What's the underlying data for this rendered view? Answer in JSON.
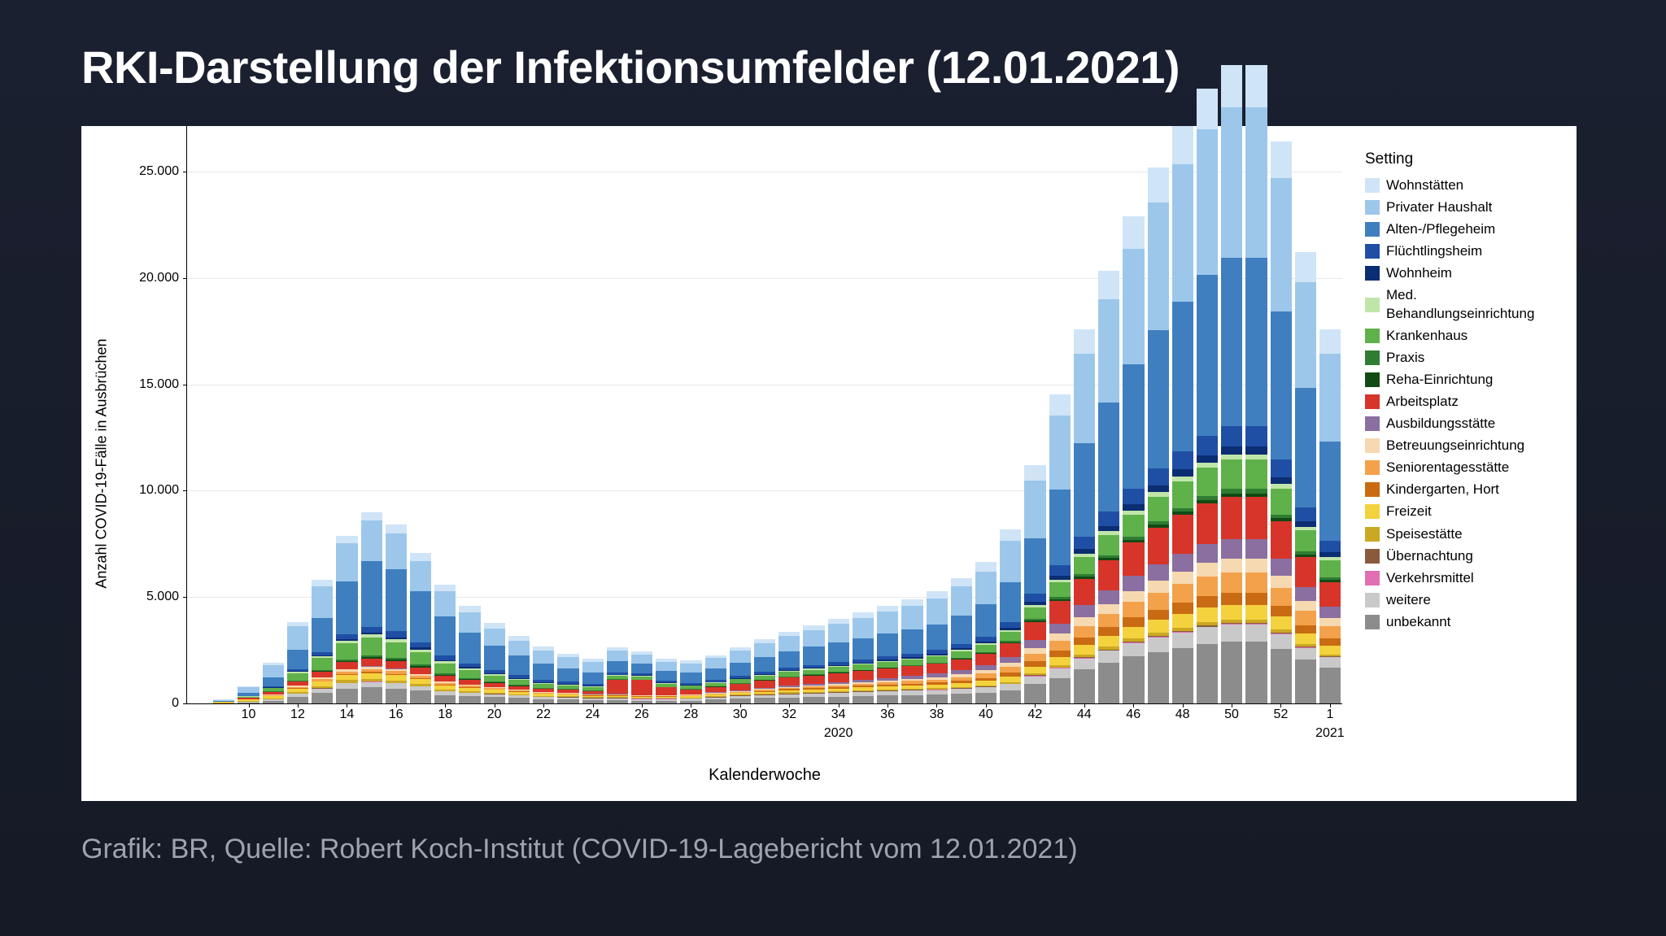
{
  "title": "RKI-Darstellung der Infektionsumfelder (12.01.2021)",
  "caption": "Grafik: BR, Quelle: Robert Koch-Institut (COVID-19-Lagebericht vom 12.01.2021)",
  "chart": {
    "type": "stacked-bar",
    "background_color": "#ffffff",
    "grid_color": "#e8e8e8",
    "ylabel": "Anzahl COVID-19-Fälle in Ausbrüchen",
    "xlabel": "Kalenderwoche",
    "legend_title": "Setting",
    "ylim": [
      0,
      26000
    ],
    "y_ticks": [
      0,
      5000,
      10000,
      15000,
      20000,
      25000
    ],
    "y_tick_labels": [
      "0",
      "5.000",
      "10.000",
      "15.000",
      "20.000",
      "25.000"
    ],
    "label_fontsize": 18,
    "tick_fontsize": 16,
    "x_tick_labels": [
      "10",
      "12",
      "14",
      "16",
      "18",
      "20",
      "22",
      "24",
      "26",
      "28",
      "30",
      "32",
      "34",
      "36",
      "38",
      "40",
      "42",
      "44",
      "46",
      "48",
      "50",
      "52",
      "1"
    ],
    "x_year_labels": [
      {
        "label": "2020",
        "index_center": 26
      },
      {
        "label": "2021",
        "index_center": 46
      }
    ],
    "categories": [
      {
        "key": "wohnstaetten",
        "label": "Wohnstätten",
        "color": "#cfe4f7"
      },
      {
        "key": "privater_haushalt",
        "label": "Privater Haushalt",
        "color": "#9cc7eb"
      },
      {
        "key": "alten_pflegeheim",
        "label": "Alten-/Pflegeheim",
        "color": "#3f7fbf"
      },
      {
        "key": "fluechtlingsheim",
        "label": "Flüchtlingsheim",
        "color": "#1f4fa5"
      },
      {
        "key": "wohnheim",
        "label": "Wohnheim",
        "color": "#0b2d72"
      },
      {
        "key": "med_behandlung",
        "label": "Med. Behandlungseinrichtung",
        "color": "#bfe6a8"
      },
      {
        "key": "krankenhaus",
        "label": "Krankenhaus",
        "color": "#5fb14a"
      },
      {
        "key": "praxis",
        "label": "Praxis",
        "color": "#2e7d32"
      },
      {
        "key": "reha",
        "label": "Reha-Einrichtung",
        "color": "#124a15"
      },
      {
        "key": "arbeitsplatz",
        "label": "Arbeitsplatz",
        "color": "#d8352a"
      },
      {
        "key": "ausbildung",
        "label": "Ausbildungsstätte",
        "color": "#8a6fa0"
      },
      {
        "key": "betreuung",
        "label": "Betreuungseinrichtung",
        "color": "#f6d9b0"
      },
      {
        "key": "seniorentag",
        "label": "Seniorentagesstätte",
        "color": "#f3a24b"
      },
      {
        "key": "kindergarten",
        "label": "Kindergarten, Hort",
        "color": "#c96b12"
      },
      {
        "key": "freizeit",
        "label": "Freizeit",
        "color": "#f4d23e"
      },
      {
        "key": "speise",
        "label": "Speisestätte",
        "color": "#caa823"
      },
      {
        "key": "uebernachtung",
        "label": "Übernachtung",
        "color": "#8b5a3c"
      },
      {
        "key": "verkehr",
        "label": "Verkehrsmittel",
        "color": "#e06fb4"
      },
      {
        "key": "weitere",
        "label": "weitere",
        "color": "#c9c9c9"
      },
      {
        "key": "unbekannt",
        "label": "unbekannt",
        "color": "#8c8c8c"
      }
    ],
    "weeks": [
      "8",
      "9",
      "10",
      "11",
      "12",
      "13",
      "14",
      "15",
      "16",
      "17",
      "18",
      "19",
      "20",
      "21",
      "22",
      "23",
      "24",
      "25",
      "26",
      "27",
      "28",
      "29",
      "30",
      "31",
      "32",
      "33",
      "34",
      "35",
      "36",
      "37",
      "38",
      "39",
      "40",
      "41",
      "42",
      "43",
      "44",
      "45",
      "46",
      "47",
      "48",
      "49",
      "50",
      "51",
      "52",
      "53",
      "1"
    ],
    "series_order_bottom_to_top": [
      "unbekannt",
      "weitere",
      "verkehr",
      "uebernachtung",
      "speise",
      "freizeit",
      "kindergarten",
      "seniorentag",
      "betreuung",
      "ausbildung",
      "arbeitsplatz",
      "reha",
      "praxis",
      "krankenhaus",
      "med_behandlung",
      "wohnheim",
      "fluechtlingsheim",
      "alten_pflegeheim",
      "privater_haushalt",
      "wohnstaetten"
    ],
    "data": {
      "unbekannt": [
        0,
        0,
        50,
        100,
        300,
        500,
        700,
        750,
        700,
        600,
        400,
        350,
        300,
        250,
        200,
        180,
        150,
        150,
        130,
        130,
        130,
        180,
        220,
        250,
        280,
        300,
        320,
        350,
        380,
        400,
        420,
        450,
        500,
        600,
        900,
        1200,
        1600,
        1900,
        2200,
        2400,
        2600,
        2800,
        2900,
        2900,
        2550,
        2050,
        1700
      ],
      "weitere": [
        0,
        0,
        30,
        80,
        150,
        200,
        250,
        260,
        240,
        200,
        170,
        150,
        130,
        120,
        110,
        100,
        90,
        90,
        80,
        80,
        90,
        100,
        110,
        130,
        150,
        160,
        170,
        180,
        190,
        200,
        210,
        230,
        260,
        300,
        380,
        450,
        520,
        580,
        640,
        700,
        740,
        780,
        800,
        800,
        700,
        560,
        470
      ],
      "verkehr": [
        0,
        0,
        0,
        0,
        5,
        5,
        5,
        5,
        5,
        5,
        5,
        5,
        5,
        5,
        5,
        5,
        5,
        5,
        5,
        5,
        5,
        5,
        5,
        5,
        5,
        5,
        5,
        5,
        5,
        5,
        5,
        5,
        10,
        10,
        15,
        15,
        20,
        20,
        25,
        25,
        30,
        30,
        30,
        30,
        25,
        20,
        15
      ],
      "uebernachtung": [
        0,
        0,
        0,
        5,
        10,
        15,
        20,
        20,
        20,
        15,
        10,
        10,
        10,
        10,
        10,
        10,
        10,
        10,
        10,
        15,
        20,
        25,
        30,
        35,
        40,
        40,
        40,
        40,
        35,
        30,
        25,
        25,
        25,
        25,
        30,
        30,
        35,
        35,
        40,
        40,
        45,
        45,
        45,
        45,
        40,
        30,
        25
      ],
      "speise": [
        0,
        30,
        40,
        60,
        80,
        100,
        120,
        130,
        120,
        100,
        80,
        70,
        60,
        50,
        40,
        40,
        35,
        35,
        30,
        30,
        30,
        35,
        40,
        45,
        50,
        50,
        50,
        50,
        50,
        50,
        50,
        55,
        60,
        70,
        85,
        100,
        115,
        130,
        140,
        150,
        160,
        170,
        170,
        170,
        150,
        120,
        100
      ],
      "freizeit": [
        0,
        30,
        60,
        100,
        150,
        200,
        250,
        270,
        260,
        230,
        180,
        150,
        130,
        110,
        90,
        80,
        70,
        70,
        60,
        60,
        60,
        70,
        80,
        90,
        100,
        110,
        120,
        130,
        140,
        150,
        160,
        180,
        200,
        250,
        320,
        390,
        450,
        510,
        560,
        610,
        650,
        680,
        700,
        700,
        620,
        500,
        420
      ],
      "kindergarten": [
        0,
        0,
        5,
        10,
        20,
        30,
        40,
        45,
        40,
        30,
        25,
        20,
        15,
        15,
        15,
        15,
        15,
        15,
        15,
        15,
        20,
        25,
        30,
        40,
        50,
        60,
        70,
        80,
        90,
        100,
        110,
        130,
        150,
        190,
        250,
        310,
        360,
        410,
        450,
        490,
        520,
        550,
        560,
        560,
        500,
        400,
        330
      ],
      "seniorentag": [
        0,
        0,
        10,
        30,
        60,
        90,
        120,
        140,
        130,
        110,
        90,
        70,
        60,
        50,
        40,
        40,
        35,
        35,
        30,
        30,
        30,
        35,
        40,
        50,
        60,
        70,
        80,
        90,
        100,
        120,
        140,
        170,
        200,
        260,
        350,
        450,
        550,
        640,
        720,
        800,
        860,
        920,
        960,
        960,
        850,
        680,
        560
      ],
      "betreuung": [
        0,
        0,
        10,
        30,
        50,
        70,
        90,
        100,
        90,
        80,
        70,
        60,
        50,
        40,
        35,
        30,
        30,
        30,
        25,
        25,
        25,
        30,
        35,
        40,
        50,
        60,
        70,
        80,
        90,
        100,
        120,
        140,
        160,
        200,
        270,
        340,
        400,
        460,
        510,
        560,
        600,
        640,
        660,
        660,
        580,
        470,
        390
      ],
      "ausbildung": [
        0,
        0,
        0,
        5,
        10,
        15,
        20,
        25,
        30,
        25,
        20,
        15,
        10,
        10,
        10,
        10,
        10,
        10,
        10,
        10,
        15,
        20,
        30,
        40,
        50,
        60,
        80,
        100,
        120,
        140,
        160,
        190,
        220,
        280,
        380,
        480,
        570,
        650,
        720,
        780,
        830,
        870,
        900,
        900,
        800,
        640,
        530
      ],
      "arbeitsplatz": [
        0,
        20,
        60,
        120,
        200,
        280,
        350,
        380,
        360,
        310,
        260,
        220,
        190,
        160,
        140,
        130,
        120,
        650,
        700,
        350,
        230,
        250,
        300,
        350,
        380,
        400,
        420,
        430,
        440,
        450,
        460,
        500,
        550,
        650,
        850,
        1050,
        1230,
        1400,
        1550,
        1700,
        1820,
        1920,
        1980,
        1980,
        1740,
        1400,
        1160
      ],
      "reha": [
        0,
        0,
        5,
        10,
        20,
        30,
        45,
        55,
        60,
        50,
        40,
        30,
        25,
        20,
        15,
        15,
        15,
        15,
        15,
        15,
        15,
        15,
        20,
        20,
        25,
        25,
        25,
        25,
        30,
        30,
        30,
        35,
        40,
        50,
        65,
        85,
        100,
        115,
        130,
        145,
        160,
        170,
        180,
        180,
        160,
        130,
        110
      ],
      "praxis": [
        0,
        0,
        5,
        15,
        30,
        45,
        60,
        75,
        80,
        70,
        55,
        45,
        35,
        30,
        25,
        25,
        20,
        20,
        20,
        20,
        20,
        20,
        25,
        25,
        30,
        30,
        30,
        30,
        30,
        30,
        35,
        40,
        45,
        55,
        75,
        95,
        115,
        130,
        145,
        160,
        175,
        185,
        195,
        195,
        170,
        140,
        115
      ],
      "krankenhaus": [
        0,
        10,
        50,
        150,
        350,
        550,
        750,
        850,
        750,
        600,
        480,
        380,
        300,
        240,
        200,
        180,
        160,
        160,
        140,
        140,
        140,
        150,
        170,
        190,
        210,
        220,
        230,
        240,
        250,
        260,
        280,
        310,
        350,
        420,
        560,
        700,
        830,
        950,
        1060,
        1170,
        1260,
        1340,
        1400,
        1400,
        1230,
        990,
        820
      ],
      "med_behandlung": [
        0,
        0,
        10,
        30,
        60,
        90,
        120,
        140,
        140,
        120,
        95,
        80,
        65,
        55,
        45,
        40,
        35,
        35,
        30,
        30,
        30,
        30,
        35,
        40,
        45,
        45,
        45,
        45,
        50,
        50,
        50,
        55,
        60,
        75,
        100,
        125,
        145,
        165,
        185,
        200,
        215,
        230,
        240,
        240,
        210,
        170,
        140
      ],
      "wohnheim": [
        0,
        0,
        5,
        15,
        30,
        50,
        70,
        85,
        90,
        80,
        65,
        55,
        45,
        40,
        35,
        30,
        30,
        30,
        25,
        25,
        25,
        25,
        30,
        35,
        40,
        45,
        50,
        55,
        60,
        65,
        70,
        80,
        90,
        110,
        150,
        190,
        225,
        255,
        285,
        310,
        335,
        355,
        370,
        370,
        325,
        260,
        215
      ],
      "fluechtlingsheim": [
        0,
        5,
        20,
        50,
        100,
        160,
        230,
        280,
        290,
        260,
        220,
        180,
        150,
        125,
        105,
        95,
        85,
        85,
        80,
        80,
        80,
        85,
        95,
        110,
        125,
        135,
        145,
        155,
        165,
        175,
        190,
        210,
        235,
        290,
        390,
        490,
        580,
        660,
        730,
        800,
        860,
        910,
        950,
        950,
        840,
        670,
        560
      ],
      "alten_pflegeheim": [
        0,
        20,
        150,
        400,
        900,
        1600,
        2500,
        3100,
        2900,
        2400,
        1850,
        1450,
        1150,
        930,
        770,
        640,
        560,
        560,
        490,
        490,
        490,
        540,
        620,
        700,
        780,
        850,
        920,
        980,
        1050,
        1120,
        1200,
        1330,
        1500,
        1850,
        2600,
        3550,
        4400,
        5150,
        5850,
        6500,
        7050,
        7550,
        7900,
        7900,
        6950,
        5600,
        4650
      ],
      "privater_haushalt": [
        0,
        50,
        250,
        600,
        1100,
        1500,
        1800,
        1900,
        1700,
        1400,
        1150,
        950,
        800,
        700,
        600,
        520,
        470,
        470,
        420,
        420,
        440,
        490,
        560,
        640,
        720,
        800,
        880,
        960,
        1040,
        1130,
        1230,
        1380,
        1560,
        1950,
        2700,
        3500,
        4200,
        4850,
        5450,
        6000,
        6450,
        6850,
        7100,
        7100,
        6250,
        5000,
        4150
      ],
      "wohnstaetten": [
        0,
        10,
        50,
        110,
        190,
        270,
        350,
        400,
        410,
        380,
        330,
        290,
        250,
        220,
        190,
        170,
        150,
        150,
        130,
        130,
        130,
        140,
        160,
        180,
        200,
        220,
        240,
        260,
        280,
        310,
        340,
        380,
        430,
        540,
        750,
        970,
        1160,
        1340,
        1510,
        1660,
        1790,
        1900,
        1970,
        1970,
        1730,
        1390,
        1150
      ]
    }
  }
}
